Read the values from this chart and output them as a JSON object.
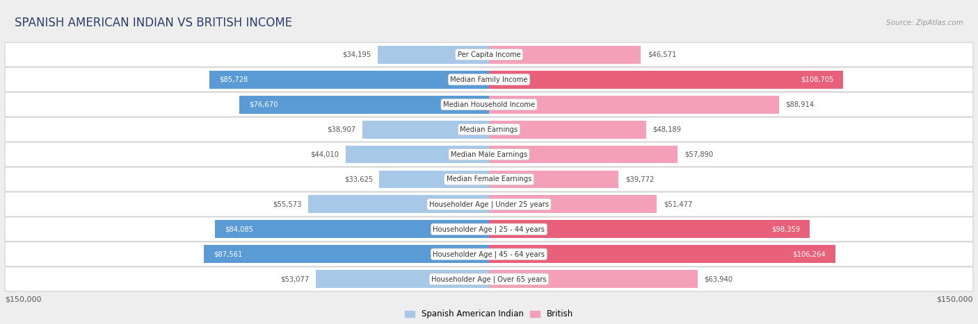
{
  "title": "SPANISH AMERICAN INDIAN VS BRITISH INCOME",
  "source": "Source: ZipAtlas.com",
  "categories": [
    "Per Capita Income",
    "Median Family Income",
    "Median Household Income",
    "Median Earnings",
    "Median Male Earnings",
    "Median Female Earnings",
    "Householder Age | Under 25 years",
    "Householder Age | 25 - 44 years",
    "Householder Age | 45 - 64 years",
    "Householder Age | Over 65 years"
  ],
  "spanish_values": [
    34195,
    85728,
    76670,
    38907,
    44010,
    33625,
    55573,
    84085,
    87561,
    53077
  ],
  "british_values": [
    46571,
    108705,
    88914,
    48189,
    57890,
    39772,
    51477,
    98359,
    106264,
    63940
  ],
  "spanish_labels": [
    "$34,195",
    "$85,728",
    "$76,670",
    "$38,907",
    "$44,010",
    "$33,625",
    "$55,573",
    "$84,085",
    "$87,561",
    "$53,077"
  ],
  "british_labels": [
    "$46,571",
    "$108,705",
    "$88,914",
    "$48,189",
    "$57,890",
    "$39,772",
    "$51,477",
    "$98,359",
    "$106,264",
    "$63,940"
  ],
  "s_is_dark": [
    false,
    true,
    true,
    false,
    false,
    false,
    false,
    true,
    true,
    false
  ],
  "b_is_dark": [
    false,
    true,
    false,
    false,
    false,
    false,
    false,
    true,
    true,
    false
  ],
  "max_value": 150000,
  "spanish_color_light": "#a8c8e8",
  "spanish_color_dark": "#5b9bd5",
  "british_color_light": "#f4a0b8",
  "british_color_dark": "#e8607a",
  "bg_color": "#ffffff",
  "outer_bg": "#eeeeee",
  "row_bg_white": "#ffffff",
  "row_bg_gray": "#f5f5f5",
  "legend_spanish": "Spanish American Indian",
  "legend_british": "British",
  "xlabel_left": "$150,000",
  "xlabel_right": "$150,000",
  "title_color": "#2c3e6b",
  "label_dark_color": "#ffffff",
  "label_light_color": "#555555"
}
